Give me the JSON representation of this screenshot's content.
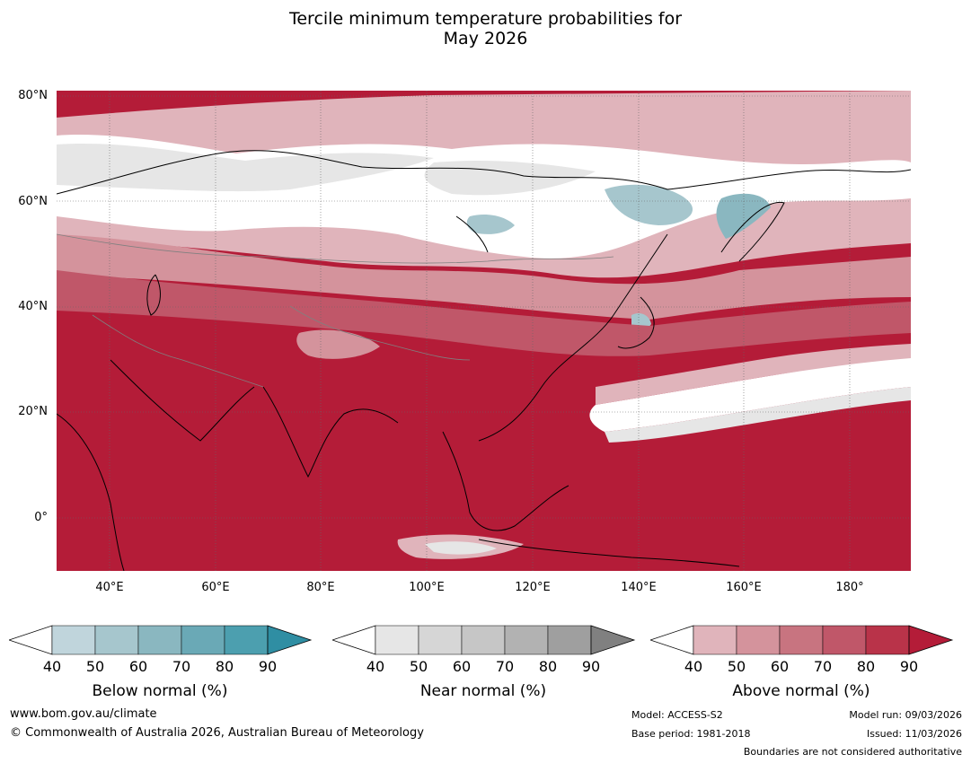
{
  "title_line1": "Tercile minimum temperature probabilities for",
  "title_line2": "May 2026",
  "map": {
    "lat_labels": [
      "80°N",
      "60°N",
      "40°N",
      "20°N",
      "0°"
    ],
    "lon_labels": [
      "40°E",
      "60°E",
      "80°E",
      "100°E",
      "120°E",
      "140°E",
      "160°E",
      "180°"
    ],
    "extent": {
      "lon_min": 30,
      "lon_max": 191,
      "lat_min": -10,
      "lat_max": 81
    }
  },
  "legends": [
    {
      "title": "Below normal (%)",
      "ticks": [
        "40",
        "50",
        "60",
        "70",
        "80",
        "90"
      ],
      "colors": [
        "#c0d5dc",
        "#a6c6cd",
        "#8ab7c0",
        "#6aa9b6",
        "#4c9faf",
        "#2f8ea3"
      ]
    },
    {
      "title": "Near normal (%)",
      "ticks": [
        "40",
        "50",
        "60",
        "70",
        "80",
        "90"
      ],
      "colors": [
        "#e6e6e6",
        "#d6d6d6",
        "#c6c6c6",
        "#b2b2b2",
        "#9f9f9f",
        "#808080"
      ]
    },
    {
      "title": "Above normal (%)",
      "ticks": [
        "40",
        "50",
        "60",
        "70",
        "80",
        "90"
      ],
      "colors": [
        "#e0b4bb",
        "#d4939c",
        "#c87480",
        "#c05769",
        "#b93349",
        "#b41c38"
      ]
    }
  ],
  "footer": {
    "website": "www.bom.gov.au/climate",
    "copyright": "© Commonwealth of Australia 2026, Australian Bureau of Meteorology",
    "model": "Model: ACCESS-S2",
    "base_period": "Base period: 1981-2018",
    "model_run": "Model run: 09/03/2026",
    "issued": "Issued: 11/03/2026",
    "disclaimer": "Boundaries are not considered authoritative"
  },
  "colors": {
    "above_dark": "#b41c38",
    "above_mid": "#c05769",
    "above_light": "#e0b4bb",
    "near_light": "#e6e6e6",
    "below_light": "#a6c6cd"
  }
}
